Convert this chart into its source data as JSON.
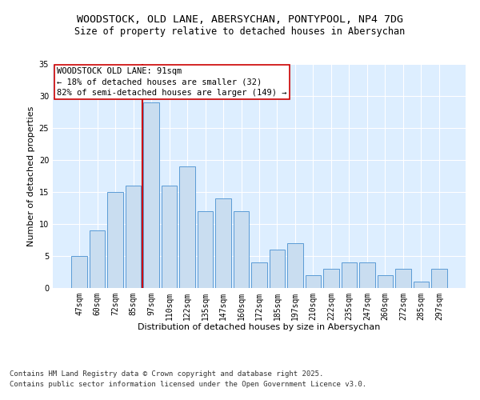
{
  "title1": "WOODSTOCK, OLD LANE, ABERSYCHAN, PONTYPOOL, NP4 7DG",
  "title2": "Size of property relative to detached houses in Abersychan",
  "xlabel": "Distribution of detached houses by size in Abersychan",
  "ylabel": "Number of detached properties",
  "categories": [
    "47sqm",
    "60sqm",
    "72sqm",
    "85sqm",
    "97sqm",
    "110sqm",
    "122sqm",
    "135sqm",
    "147sqm",
    "160sqm",
    "172sqm",
    "185sqm",
    "197sqm",
    "210sqm",
    "222sqm",
    "235sqm",
    "247sqm",
    "260sqm",
    "272sqm",
    "285sqm",
    "297sqm"
  ],
  "values": [
    5,
    9,
    15,
    16,
    29,
    16,
    19,
    12,
    14,
    12,
    4,
    6,
    7,
    2,
    3,
    4,
    4,
    2,
    3,
    1,
    3
  ],
  "bar_color": "#c9ddf0",
  "bar_edge_color": "#5b9bd5",
  "vline_color": "#cc0000",
  "vline_pos": 3.5,
  "annotation_text": "WOODSTOCK OLD LANE: 91sqm\n← 18% of detached houses are smaller (32)\n82% of semi-detached houses are larger (149) →",
  "annotation_box_color": "#ffffff",
  "annotation_box_edge": "#cc0000",
  "ylim": [
    0,
    35
  ],
  "yticks": [
    0,
    5,
    10,
    15,
    20,
    25,
    30,
    35
  ],
  "bg_color": "#ddeeff",
  "footer1": "Contains HM Land Registry data © Crown copyright and database right 2025.",
  "footer2": "Contains public sector information licensed under the Open Government Licence v3.0.",
  "title_fontsize": 9.5,
  "subtitle_fontsize": 8.5,
  "axis_label_fontsize": 8,
  "tick_fontsize": 7,
  "annotation_fontsize": 7.5,
  "footer_fontsize": 6.5
}
